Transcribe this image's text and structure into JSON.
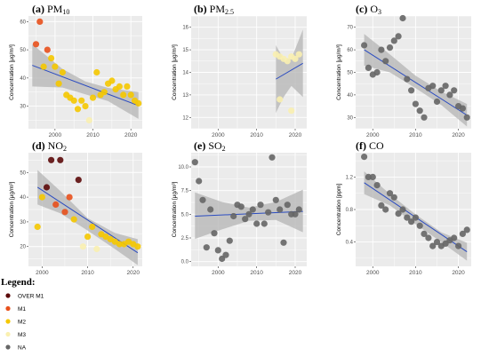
{
  "chart_data": [
    {
      "type": "scatter",
      "letter": "(a)",
      "pollutant": "PM",
      "subscript": "10",
      "ylabel": "Concentration [μg/m³]",
      "xlim": [
        1993,
        2023
      ],
      "ylim": [
        22,
        62
      ],
      "xticks": [
        2000,
        2010,
        2020
      ],
      "yticks": [
        30,
        40,
        50,
        60
      ],
      "fit": {
        "x": [
          1994,
          2022
        ],
        "y": [
          44.5,
          30.2
        ]
      },
      "band": {
        "x": [
          1994,
          2002,
          2008,
          2014,
          2022
        ],
        "upper": [
          52,
          43.2,
          38.8,
          36.5,
          35.0
        ],
        "lower": [
          37,
          36.6,
          34.2,
          31.8,
          25.5
        ]
      },
      "points": [
        {
          "x": 1996,
          "y": 60,
          "c": "M1"
        },
        {
          "x": 1995,
          "y": 52,
          "c": "M1"
        },
        {
          "x": 1998,
          "y": 50,
          "c": "M1"
        },
        {
          "x": 1997,
          "y": 44,
          "c": "M2"
        },
        {
          "x": 1999,
          "y": 47,
          "c": "M2"
        },
        {
          "x": 2000,
          "y": 44,
          "c": "M2"
        },
        {
          "x": 2001,
          "y": 38,
          "c": "M2"
        },
        {
          "x": 2002,
          "y": 42,
          "c": "M2"
        },
        {
          "x": 2003,
          "y": 34,
          "c": "M2"
        },
        {
          "x": 2004,
          "y": 33,
          "c": "M2"
        },
        {
          "x": 2005,
          "y": 32,
          "c": "M2"
        },
        {
          "x": 2006,
          "y": 29,
          "c": "M2"
        },
        {
          "x": 2007,
          "y": 32,
          "c": "M2"
        },
        {
          "x": 2008,
          "y": 30,
          "c": "M2"
        },
        {
          "x": 2009,
          "y": 25,
          "c": "M3"
        },
        {
          "x": 2010,
          "y": 33,
          "c": "M2"
        },
        {
          "x": 2011,
          "y": 42,
          "c": "M2"
        },
        {
          "x": 2012,
          "y": 34,
          "c": "M2"
        },
        {
          "x": 2013,
          "y": 35,
          "c": "M2"
        },
        {
          "x": 2014,
          "y": 38,
          "c": "M2"
        },
        {
          "x": 2015,
          "y": 39,
          "c": "M2"
        },
        {
          "x": 2016,
          "y": 36,
          "c": "M2"
        },
        {
          "x": 2017,
          "y": 37,
          "c": "M2"
        },
        {
          "x": 2018,
          "y": 34,
          "c": "M2"
        },
        {
          "x": 2019,
          "y": 37,
          "c": "M2"
        },
        {
          "x": 2020,
          "y": 34,
          "c": "M2"
        },
        {
          "x": 2021,
          "y": 32,
          "c": "M2"
        },
        {
          "x": 2022,
          "y": 31,
          "c": "M2"
        }
      ]
    },
    {
      "type": "scatter",
      "letter": "(b)",
      "pollutant": "PM",
      "subscript": "2.5",
      "ylabel": "Concentration [μg/m³]",
      "xlim": [
        1993,
        2023
      ],
      "ylim": [
        11.5,
        16.5
      ],
      "xticks": [
        2000,
        2010,
        2020
      ],
      "yticks": [
        12,
        13,
        14,
        15,
        16
      ],
      "fit": {
        "x": [
          2015,
          2022
        ],
        "y": [
          13.7,
          14.4
        ]
      },
      "band": {
        "x": [
          2015,
          2017,
          2019,
          2022
        ],
        "upper": [
          15.2,
          14.6,
          14.6,
          15.9
        ],
        "lower": [
          12.2,
          12.9,
          13.4,
          12.9
        ]
      },
      "points": [
        {
          "x": 2015,
          "y": 14.8,
          "c": "M3"
        },
        {
          "x": 2016,
          "y": 14.7,
          "c": "M3"
        },
        {
          "x": 2017,
          "y": 14.6,
          "c": "M3"
        },
        {
          "x": 2018,
          "y": 14.5,
          "c": "M3"
        },
        {
          "x": 2019,
          "y": 14.7,
          "c": "M3"
        },
        {
          "x": 2020,
          "y": 14.6,
          "c": "M3"
        },
        {
          "x": 2021,
          "y": 14.8,
          "c": "M3"
        },
        {
          "x": 2016,
          "y": 12.8,
          "c": "M3"
        },
        {
          "x": 2019,
          "y": 12.3,
          "c": "M3"
        }
      ]
    },
    {
      "type": "scatter",
      "letter": "(c)",
      "pollutant": "O",
      "subscript": "3",
      "ylabel": "Concentration [μg/m³]",
      "xlim": [
        1996,
        2023
      ],
      "ylim": [
        25,
        75
      ],
      "xticks": [
        2000,
        2010,
        2020
      ],
      "yticks": [
        30,
        40,
        50,
        60,
        70
      ],
      "fit": {
        "x": [
          1998,
          2022
        ],
        "y": [
          60,
          31
        ]
      },
      "band": {
        "x": [
          1998,
          2004,
          2010,
          2016,
          2022
        ],
        "upper": [
          67,
          58,
          48.5,
          41.5,
          36
        ],
        "lower": [
          53,
          50,
          43,
          35.5,
          26
        ]
      },
      "points": [
        {
          "x": 1998,
          "y": 62,
          "c": "NA"
        },
        {
          "x": 1999,
          "y": 52,
          "c": "NA"
        },
        {
          "x": 2000,
          "y": 49,
          "c": "NA"
        },
        {
          "x": 2001,
          "y": 50,
          "c": "NA"
        },
        {
          "x": 2002,
          "y": 60,
          "c": "NA"
        },
        {
          "x": 2003,
          "y": 55,
          "c": "NA"
        },
        {
          "x": 2004,
          "y": 61,
          "c": "NA"
        },
        {
          "x": 2005,
          "y": 64,
          "c": "NA"
        },
        {
          "x": 2006,
          "y": 66,
          "c": "NA"
        },
        {
          "x": 2007,
          "y": 74,
          "c": "NA"
        },
        {
          "x": 2008,
          "y": 47,
          "c": "NA"
        },
        {
          "x": 2009,
          "y": 42,
          "c": "NA"
        },
        {
          "x": 2010,
          "y": 36,
          "c": "NA"
        },
        {
          "x": 2011,
          "y": 33,
          "c": "NA"
        },
        {
          "x": 2012,
          "y": 30,
          "c": "NA"
        },
        {
          "x": 2013,
          "y": 43,
          "c": "NA"
        },
        {
          "x": 2014,
          "y": 44,
          "c": "NA"
        },
        {
          "x": 2015,
          "y": 37,
          "c": "NA"
        },
        {
          "x": 2016,
          "y": 42,
          "c": "NA"
        },
        {
          "x": 2017,
          "y": 44,
          "c": "NA"
        },
        {
          "x": 2018,
          "y": 40,
          "c": "NA"
        },
        {
          "x": 2019,
          "y": 42,
          "c": "NA"
        },
        {
          "x": 2020,
          "y": 35,
          "c": "NA"
        },
        {
          "x": 2021,
          "y": 34,
          "c": "NA"
        },
        {
          "x": 2022,
          "y": 30,
          "c": "NA"
        }
      ]
    },
    {
      "type": "scatter",
      "letter": "(d)",
      "pollutant": "NO",
      "subscript": "2",
      "ylabel": "Concentration [μg/m³]",
      "xlim": [
        1997,
        2022
      ],
      "ylim": [
        12,
        58
      ],
      "xticks": [
        2000,
        2010,
        2020
      ],
      "yticks": [
        20,
        30,
        40,
        50
      ],
      "fit": {
        "x": [
          1999,
          2021
        ],
        "y": [
          44,
          17.5
        ]
      },
      "band": {
        "x": [
          1999,
          2004,
          2010,
          2016,
          2021
        ],
        "upper": [
          51,
          42.5,
          31.5,
          25.5,
          23
        ],
        "lower": [
          37,
          33.5,
          26.5,
          19,
          12.5
        ]
      },
      "points": [
        {
          "x": 1999,
          "y": 28,
          "c": "M2"
        },
        {
          "x": 2000,
          "y": 40,
          "c": "M2"
        },
        {
          "x": 2001,
          "y": 44,
          "c": "OVER M1"
        },
        {
          "x": 2002,
          "y": 55,
          "c": "OVER M1"
        },
        {
          "x": 2003,
          "y": 37,
          "c": "M1"
        },
        {
          "x": 2004,
          "y": 55,
          "c": "OVER M1"
        },
        {
          "x": 2005,
          "y": 34,
          "c": "M1"
        },
        {
          "x": 2006,
          "y": 40,
          "c": "M1"
        },
        {
          "x": 2007,
          "y": 31,
          "c": "M2"
        },
        {
          "x": 2008,
          "y": 47,
          "c": "OVER M1"
        },
        {
          "x": 2009,
          "y": 20,
          "c": "M3"
        },
        {
          "x": 2010,
          "y": 24,
          "c": "M2"
        },
        {
          "x": 2011,
          "y": 28,
          "c": "M2"
        },
        {
          "x": 2012,
          "y": 19,
          "c": "M3"
        },
        {
          "x": 2013,
          "y": 25,
          "c": "M2"
        },
        {
          "x": 2014,
          "y": 24,
          "c": "M2"
        },
        {
          "x": 2015,
          "y": 23,
          "c": "M2"
        },
        {
          "x": 2016,
          "y": 22,
          "c": "M2"
        },
        {
          "x": 2017,
          "y": 21,
          "c": "M2"
        },
        {
          "x": 2018,
          "y": 21,
          "c": "M2"
        },
        {
          "x": 2019,
          "y": 22,
          "c": "M2"
        },
        {
          "x": 2020,
          "y": 21,
          "c": "M2"
        },
        {
          "x": 2021,
          "y": 20,
          "c": "M2"
        }
      ]
    },
    {
      "type": "scatter",
      "letter": "(e)",
      "pollutant": "SO",
      "subscript": "2",
      "ylabel": "Concentration [μg/m³]",
      "xlim": [
        1993,
        2023
      ],
      "ylim": [
        -0.5,
        11.5
      ],
      "xticks": [
        2000,
        2010,
        2020
      ],
      "yticks": [
        0.0,
        2.5,
        5.0,
        7.5,
        10.0
      ],
      "fit": {
        "x": [
          1994,
          2022
        ],
        "y": [
          4.8,
          5.3
        ]
      },
      "band": {
        "x": [
          1994,
          2001,
          2008,
          2015,
          2022
        ],
        "upper": [
          7.3,
          6.3,
          5.7,
          6.3,
          7.6
        ],
        "lower": [
          2.4,
          3.4,
          4.3,
          4.4,
          3.1
        ]
      },
      "points": [
        {
          "x": 1994,
          "y": 10.5,
          "c": "NA"
        },
        {
          "x": 1995,
          "y": 8.5,
          "c": "NA"
        },
        {
          "x": 1996,
          "y": 6.5,
          "c": "NA"
        },
        {
          "x": 1997,
          "y": 1.5,
          "c": "NA"
        },
        {
          "x": 1998,
          "y": 5.5,
          "c": "NA"
        },
        {
          "x": 1999,
          "y": 3.0,
          "c": "NA"
        },
        {
          "x": 2000,
          "y": 1.2,
          "c": "NA"
        },
        {
          "x": 2001,
          "y": 0.3,
          "c": "NA"
        },
        {
          "x": 2002,
          "y": 0.7,
          "c": "NA"
        },
        {
          "x": 2003,
          "y": 2.2,
          "c": "NA"
        },
        {
          "x": 2004,
          "y": 4.8,
          "c": "NA"
        },
        {
          "x": 2005,
          "y": 6.0,
          "c": "NA"
        },
        {
          "x": 2006,
          "y": 5.8,
          "c": "NA"
        },
        {
          "x": 2007,
          "y": 4.5,
          "c": "NA"
        },
        {
          "x": 2008,
          "y": 5.0,
          "c": "NA"
        },
        {
          "x": 2009,
          "y": 5.5,
          "c": "NA"
        },
        {
          "x": 2010,
          "y": 4.0,
          "c": "NA"
        },
        {
          "x": 2011,
          "y": 6.0,
          "c": "NA"
        },
        {
          "x": 2012,
          "y": 4.0,
          "c": "NA"
        },
        {
          "x": 2013,
          "y": 5.2,
          "c": "NA"
        },
        {
          "x": 2014,
          "y": 11.0,
          "c": "NA"
        },
        {
          "x": 2015,
          "y": 6.5,
          "c": "NA"
        },
        {
          "x": 2016,
          "y": 5.5,
          "c": "NA"
        },
        {
          "x": 2017,
          "y": 2.0,
          "c": "NA"
        },
        {
          "x": 2018,
          "y": 6.0,
          "c": "NA"
        },
        {
          "x": 2019,
          "y": 5.0,
          "c": "NA"
        },
        {
          "x": 2020,
          "y": 5.0,
          "c": "NA"
        },
        {
          "x": 2021,
          "y": 5.5,
          "c": "NA"
        }
      ]
    },
    {
      "type": "scatter",
      "letter": "(f)",
      "pollutant": "CO",
      "subscript": "",
      "ylabel": "Concentration [ppm]",
      "xlim": [
        1996,
        2023
      ],
      "ylim": [
        0.1,
        1.5
      ],
      "xticks": [
        2000,
        2010,
        2020
      ],
      "yticks": [
        0.4,
        0.8,
        1.2
      ],
      "fit": {
        "x": [
          1998,
          2022
        ],
        "y": [
          1.13,
          0.28
        ]
      },
      "band": {
        "x": [
          1998,
          2004,
          2010,
          2016,
          2022
        ],
        "upper": [
          1.27,
          0.99,
          0.74,
          0.52,
          0.39
        ],
        "lower": [
          0.99,
          0.85,
          0.62,
          0.4,
          0.17
        ]
      },
      "points": [
        {
          "x": 1998,
          "y": 1.45,
          "c": "NA"
        },
        {
          "x": 1999,
          "y": 1.2,
          "c": "NA"
        },
        {
          "x": 2000,
          "y": 1.2,
          "c": "NA"
        },
        {
          "x": 2001,
          "y": 1.1,
          "c": "NA"
        },
        {
          "x": 2002,
          "y": 0.85,
          "c": "NA"
        },
        {
          "x": 2003,
          "y": 0.8,
          "c": "NA"
        },
        {
          "x": 2004,
          "y": 1.0,
          "c": "NA"
        },
        {
          "x": 2005,
          "y": 0.95,
          "c": "NA"
        },
        {
          "x": 2006,
          "y": 0.75,
          "c": "NA"
        },
        {
          "x": 2007,
          "y": 0.8,
          "c": "NA"
        },
        {
          "x": 2008,
          "y": 0.7,
          "c": "NA"
        },
        {
          "x": 2009,
          "y": 0.65,
          "c": "NA"
        },
        {
          "x": 2010,
          "y": 0.7,
          "c": "NA"
        },
        {
          "x": 2011,
          "y": 0.6,
          "c": "NA"
        },
        {
          "x": 2012,
          "y": 0.5,
          "c": "NA"
        },
        {
          "x": 2013,
          "y": 0.45,
          "c": "NA"
        },
        {
          "x": 2014,
          "y": 0.35,
          "c": "NA"
        },
        {
          "x": 2015,
          "y": 0.4,
          "c": "NA"
        },
        {
          "x": 2016,
          "y": 0.35,
          "c": "NA"
        },
        {
          "x": 2017,
          "y": 0.38,
          "c": "NA"
        },
        {
          "x": 2018,
          "y": 0.42,
          "c": "NA"
        },
        {
          "x": 2019,
          "y": 0.45,
          "c": "NA"
        },
        {
          "x": 2020,
          "y": 0.35,
          "c": "NA"
        },
        {
          "x": 2021,
          "y": 0.5,
          "c": "NA"
        },
        {
          "x": 2022,
          "y": 0.55,
          "c": "NA"
        }
      ]
    }
  ],
  "legend": {
    "title": "Legend:",
    "items": [
      {
        "key": "OVER M1",
        "label": "OVER M1",
        "color": "#5c0a0a"
      },
      {
        "key": "M1",
        "label": "M1",
        "color": "#e8501c"
      },
      {
        "key": "M2",
        "label": "M2",
        "color": "#f5c800"
      },
      {
        "key": "M3",
        "label": "M3",
        "color": "#faf0b0"
      },
      {
        "key": "NA",
        "label": "NA",
        "color": "#666666"
      }
    ]
  },
  "colors": {
    "panel_bg": "#ebebeb",
    "grid": "#ffffff",
    "fit_line": "#2a4bc0",
    "band": "#b4b4b4"
  }
}
